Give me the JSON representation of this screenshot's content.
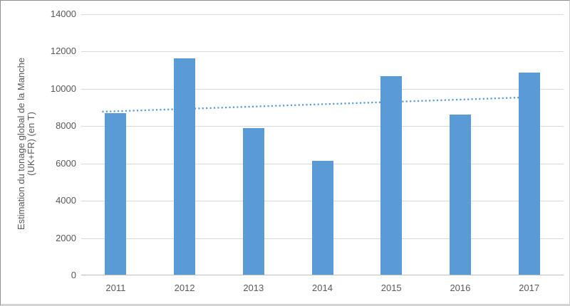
{
  "chart_data": {
    "type": "bar",
    "title": "",
    "categories": [
      "2011",
      "2012",
      "2013",
      "2014",
      "2015",
      "2016",
      "2017"
    ],
    "values": [
      8650,
      11600,
      7850,
      6100,
      10650,
      8600,
      10850
    ],
    "xlabel": "",
    "ylabel_line1": "Estimation du tonage global de la Manche",
    "ylabel_line2": "(UK+FR) (en T)",
    "ylim": [
      0,
      14000
    ],
    "yticks": [
      14000,
      12000,
      10000,
      8000,
      6000,
      4000,
      2000,
      0
    ],
    "grid": true,
    "legend_position": "none",
    "bar_color": "#5B9BD5",
    "trendline": {
      "style": "dotted",
      "color": "#5B9BD5",
      "start_value": 8800,
      "end_value": 9550
    },
    "colors": {
      "text": "#595959",
      "gridline": "#D9D9D9",
      "axis_line": "#BFBFBF",
      "background": "#FFFFFF"
    }
  }
}
